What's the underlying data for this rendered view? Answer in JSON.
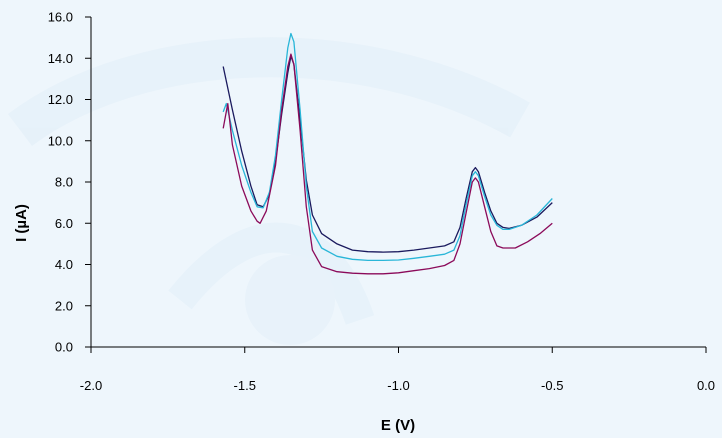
{
  "chart_data": {
    "type": "line",
    "title": "",
    "xlabel": "E (V)",
    "ylabel": "I (µA)",
    "xlim": [
      -2.0,
      0.0
    ],
    "ylim": [
      0.0,
      16.0
    ],
    "xticks": [
      -2.0,
      -1.5,
      -1.0,
      -0.5,
      0.0
    ],
    "xtick_labels": [
      "-2.0",
      "-1.5",
      "-1.0",
      "-0.5",
      "0.0"
    ],
    "yticks": [
      0,
      2,
      4,
      6,
      8,
      10,
      12,
      14,
      16
    ],
    "ytick_labels": [
      "0.0",
      "2.0",
      "4.0",
      "6.0",
      "8.0",
      "10.0",
      "12.0",
      "14.0",
      "16.0"
    ],
    "grid": false,
    "legend": "none",
    "series": [
      {
        "color": "#1a1a5e",
        "points": [
          [
            -1.57,
            13.6
          ],
          [
            -1.54,
            11.5
          ],
          [
            -1.51,
            9.5
          ],
          [
            -1.48,
            7.8
          ],
          [
            -1.46,
            6.9
          ],
          [
            -1.44,
            6.8
          ],
          [
            -1.42,
            7.4
          ],
          [
            -1.4,
            9.0
          ],
          [
            -1.38,
            11.3
          ],
          [
            -1.36,
            13.3
          ],
          [
            -1.35,
            14.1
          ],
          [
            -1.34,
            13.7
          ],
          [
            -1.32,
            11.0
          ],
          [
            -1.3,
            8.1
          ],
          [
            -1.28,
            6.4
          ],
          [
            -1.25,
            5.5
          ],
          [
            -1.2,
            5.0
          ],
          [
            -1.15,
            4.7
          ],
          [
            -1.1,
            4.62
          ],
          [
            -1.05,
            4.6
          ],
          [
            -1.0,
            4.62
          ],
          [
            -0.95,
            4.7
          ],
          [
            -0.9,
            4.8
          ],
          [
            -0.85,
            4.9
          ],
          [
            -0.82,
            5.1
          ],
          [
            -0.8,
            5.8
          ],
          [
            -0.78,
            7.2
          ],
          [
            -0.76,
            8.5
          ],
          [
            -0.75,
            8.7
          ],
          [
            -0.74,
            8.5
          ],
          [
            -0.72,
            7.5
          ],
          [
            -0.7,
            6.6
          ],
          [
            -0.68,
            6.0
          ],
          [
            -0.66,
            5.8
          ],
          [
            -0.64,
            5.75
          ],
          [
            -0.6,
            5.9
          ],
          [
            -0.55,
            6.3
          ],
          [
            -0.5,
            7.0
          ]
        ]
      },
      {
        "color": "#29b6d8",
        "points": [
          [
            -1.57,
            11.4
          ],
          [
            -1.56,
            11.8
          ],
          [
            -1.54,
            10.5
          ],
          [
            -1.51,
            8.8
          ],
          [
            -1.48,
            7.5
          ],
          [
            -1.46,
            6.8
          ],
          [
            -1.44,
            6.75
          ],
          [
            -1.42,
            7.5
          ],
          [
            -1.4,
            9.3
          ],
          [
            -1.38,
            12.0
          ],
          [
            -1.36,
            14.5
          ],
          [
            -1.35,
            15.2
          ],
          [
            -1.34,
            14.8
          ],
          [
            -1.32,
            11.5
          ],
          [
            -1.3,
            7.8
          ],
          [
            -1.28,
            5.6
          ],
          [
            -1.25,
            4.8
          ],
          [
            -1.2,
            4.4
          ],
          [
            -1.15,
            4.25
          ],
          [
            -1.1,
            4.2
          ],
          [
            -1.05,
            4.2
          ],
          [
            -1.0,
            4.22
          ],
          [
            -0.95,
            4.3
          ],
          [
            -0.9,
            4.4
          ],
          [
            -0.85,
            4.5
          ],
          [
            -0.82,
            4.7
          ],
          [
            -0.8,
            5.4
          ],
          [
            -0.78,
            6.9
          ],
          [
            -0.76,
            8.3
          ],
          [
            -0.75,
            8.5
          ],
          [
            -0.74,
            8.3
          ],
          [
            -0.72,
            7.3
          ],
          [
            -0.7,
            6.4
          ],
          [
            -0.68,
            5.9
          ],
          [
            -0.66,
            5.7
          ],
          [
            -0.64,
            5.7
          ],
          [
            -0.6,
            5.9
          ],
          [
            -0.55,
            6.4
          ],
          [
            -0.5,
            7.2
          ]
        ]
      },
      {
        "color": "#8b0a5a",
        "points": [
          [
            -1.57,
            10.6
          ],
          [
            -1.555,
            11.8
          ],
          [
            -1.54,
            9.8
          ],
          [
            -1.51,
            7.8
          ],
          [
            -1.48,
            6.6
          ],
          [
            -1.46,
            6.1
          ],
          [
            -1.45,
            6.0
          ],
          [
            -1.43,
            6.6
          ],
          [
            -1.4,
            8.8
          ],
          [
            -1.38,
            11.5
          ],
          [
            -1.36,
            13.6
          ],
          [
            -1.35,
            14.2
          ],
          [
            -1.34,
            13.7
          ],
          [
            -1.32,
            10.5
          ],
          [
            -1.3,
            6.8
          ],
          [
            -1.28,
            4.7
          ],
          [
            -1.25,
            3.9
          ],
          [
            -1.2,
            3.65
          ],
          [
            -1.15,
            3.58
          ],
          [
            -1.1,
            3.55
          ],
          [
            -1.05,
            3.55
          ],
          [
            -1.0,
            3.6
          ],
          [
            -0.95,
            3.7
          ],
          [
            -0.9,
            3.8
          ],
          [
            -0.85,
            3.95
          ],
          [
            -0.82,
            4.2
          ],
          [
            -0.8,
            5.0
          ],
          [
            -0.78,
            6.5
          ],
          [
            -0.76,
            8.0
          ],
          [
            -0.75,
            8.2
          ],
          [
            -0.74,
            8.0
          ],
          [
            -0.72,
            6.8
          ],
          [
            -0.7,
            5.6
          ],
          [
            -0.68,
            4.9
          ],
          [
            -0.66,
            4.8
          ],
          [
            -0.62,
            4.8
          ],
          [
            -0.58,
            5.1
          ],
          [
            -0.54,
            5.5
          ],
          [
            -0.5,
            6.0
          ]
        ]
      }
    ]
  }
}
